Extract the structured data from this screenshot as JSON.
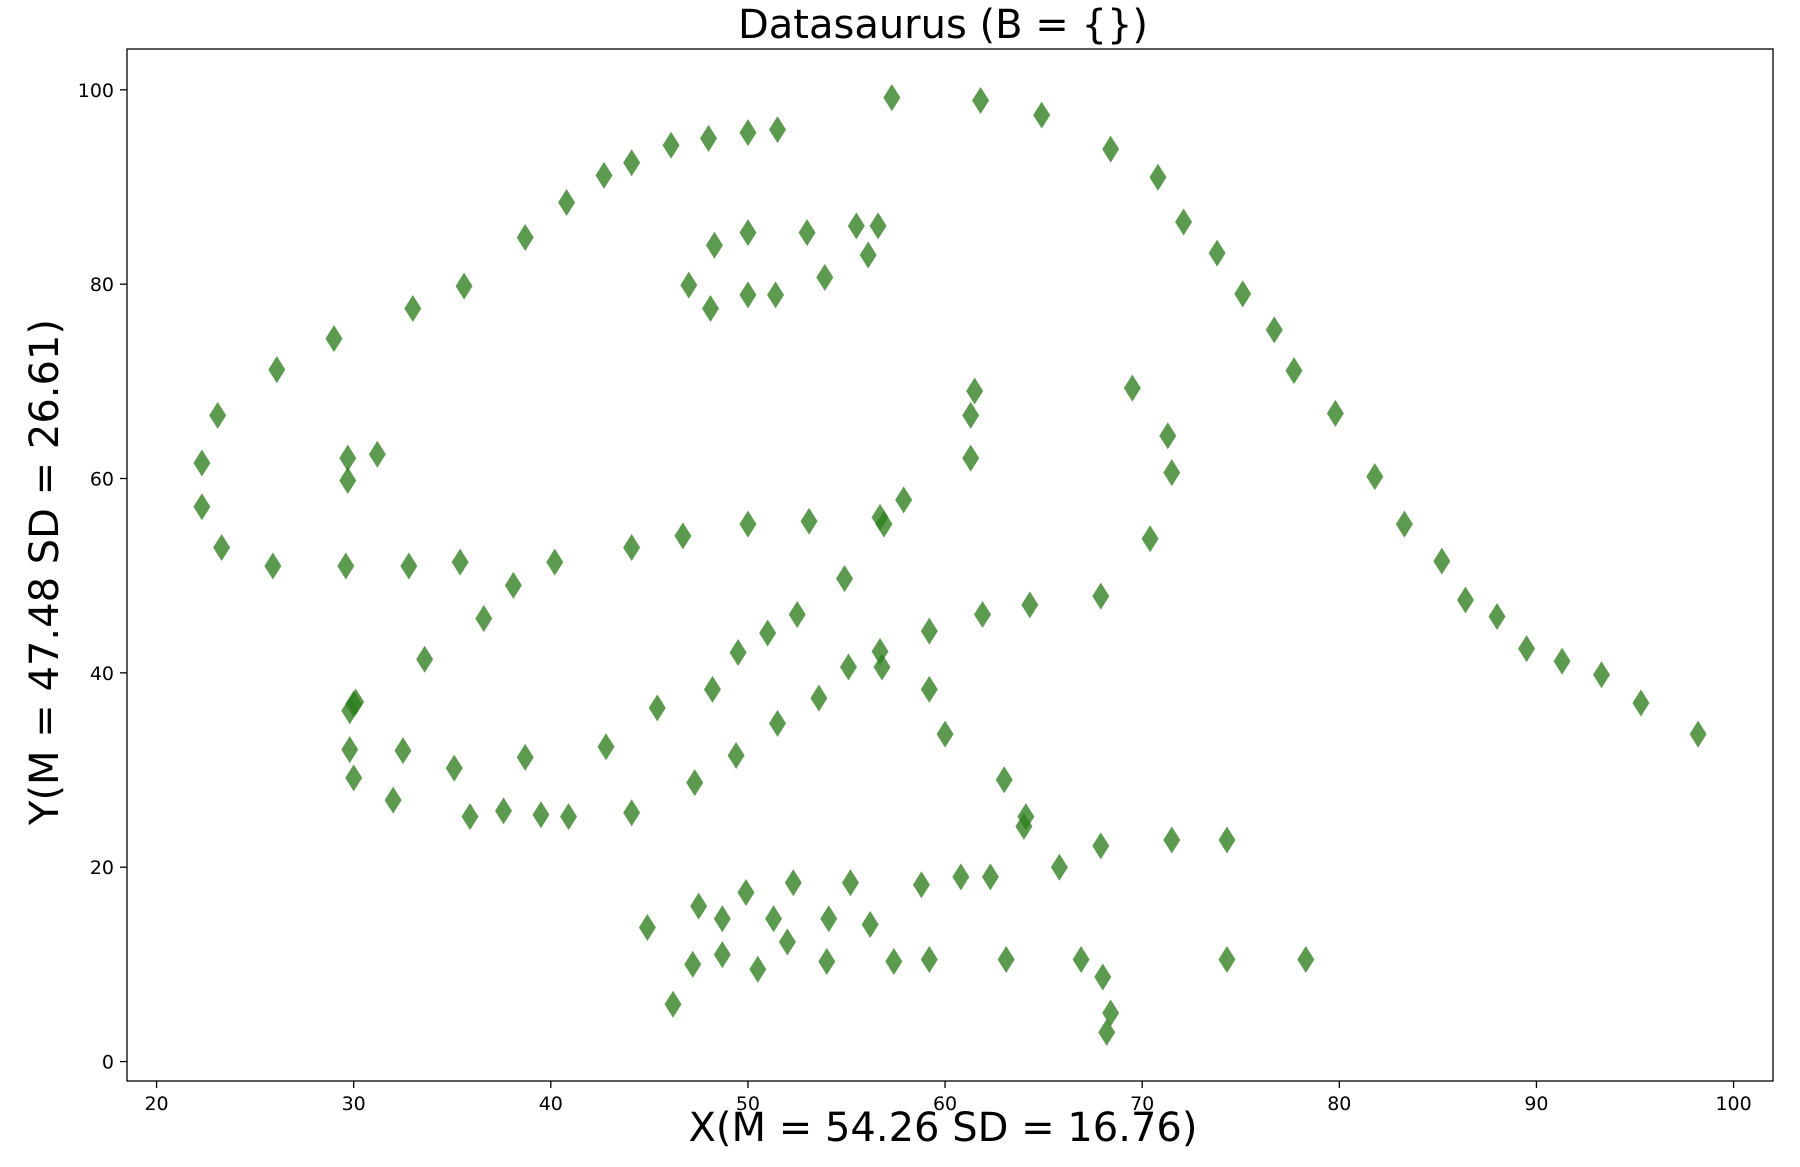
{
  "chart_data": {
    "type": "scatter",
    "title": "Datasaurus (B = {})",
    "xlabel": "X(M = 54.26 SD = 16.76)",
    "ylabel": "Y(M = 47.48 SD = 26.61)",
    "xlim": [
      18.5,
      102.0
    ],
    "ylim": [
      -2.0,
      104.2
    ],
    "xticks": [
      20,
      30,
      40,
      50,
      60,
      70,
      80,
      90,
      100
    ],
    "yticks": [
      0,
      20,
      40,
      60,
      80,
      100
    ],
    "grid": false,
    "marker": "thin_diamond",
    "color": "#2e7d1f",
    "x": [
      22.3,
      22.3,
      23.1,
      23.3,
      25.9,
      26.1,
      29.0,
      29.6,
      29.7,
      29.7,
      29.8,
      29.8,
      30.0,
      30.0,
      30.1,
      31.2,
      32.0,
      32.5,
      32.8,
      33.0,
      33.6,
      35.1,
      35.4,
      35.6,
      35.9,
      36.6,
      37.6,
      38.1,
      38.7,
      38.7,
      39.5,
      40.2,
      40.8,
      40.9,
      42.7,
      42.8,
      44.1,
      44.1,
      44.1,
      44.9,
      45.4,
      46.1,
      46.2,
      46.7,
      47.0,
      47.2,
      47.3,
      47.5,
      48.0,
      48.1,
      48.3,
      48.2,
      48.7,
      48.7,
      49.4,
      49.5,
      49.9,
      50.0,
      50.0,
      50.0,
      50.0,
      50.5,
      51.0,
      51.3,
      51.4,
      51.5,
      51.5,
      52.0,
      52.3,
      52.5,
      53.0,
      53.1,
      53.6,
      53.9,
      54.0,
      54.1,
      54.9,
      55.1,
      55.2,
      55.5,
      56.1,
      56.2,
      56.6,
      56.7,
      56.7,
      56.8,
      56.9,
      57.4,
      57.3,
      57.9,
      58.8,
      59.2,
      59.2,
      59.2,
      60.0,
      60.8,
      61.3,
      61.3,
      61.5,
      61.8,
      61.9,
      62.3,
      63.0,
      63.1,
      64.1,
      64.0,
      64.3,
      64.9,
      65.8,
      66.9,
      67.9,
      67.9,
      68.0,
      68.2,
      68.4,
      68.4,
      69.5,
      70.4,
      70.8,
      71.3,
      71.5,
      71.5,
      72.1,
      73.8,
      74.3,
      74.3,
      75.1,
      76.7,
      77.7,
      78.3,
      79.8,
      81.8,
      83.3,
      85.2,
      86.4,
      88.0,
      89.5,
      91.3,
      93.3,
      95.3,
      98.2
    ],
    "y": [
      61.6,
      57.1,
      66.5,
      52.9,
      51.0,
      71.2,
      74.4,
      51.0,
      62.1,
      59.8,
      36.1,
      32.1,
      29.2,
      36.8,
      37.0,
      62.5,
      26.9,
      32.0,
      51.0,
      77.5,
      41.4,
      30.2,
      51.4,
      79.8,
      25.2,
      45.6,
      25.8,
      49.0,
      84.8,
      31.3,
      25.4,
      51.4,
      88.4,
      25.2,
      91.2,
      32.4,
      92.5,
      52.9,
      25.6,
      13.8,
      36.4,
      94.3,
      5.9,
      54.1,
      79.9,
      10.0,
      28.7,
      16.0,
      95.0,
      77.5,
      84.0,
      38.3,
      14.7,
      11.0,
      31.5,
      42.1,
      17.4,
      95.6,
      85.3,
      78.9,
      55.3,
      9.5,
      44.1,
      14.7,
      78.9,
      95.9,
      34.8,
      12.3,
      18.4,
      46.0,
      85.3,
      55.6,
      37.4,
      80.7,
      10.3,
      14.7,
      49.7,
      40.6,
      18.4,
      86.0,
      83.0,
      14.1,
      86.0,
      56.0,
      42.2,
      40.6,
      55.3,
      10.3,
      99.2,
      57.8,
      18.2,
      44.3,
      38.3,
      10.5,
      33.7,
      19.0,
      62.1,
      66.5,
      69.0,
      98.9,
      46.0,
      19.0,
      29.0,
      10.5,
      25.2,
      24.2,
      47.0,
      97.4,
      20.0,
      10.5,
      47.9,
      22.2,
      8.7,
      3.0,
      5.0,
      93.9,
      69.3,
      53.8,
      91.0,
      64.4,
      60.6,
      22.8,
      86.4,
      83.2,
      22.8,
      10.5,
      79.0,
      75.3,
      71.1,
      10.5,
      66.7,
      60.2,
      55.3,
      51.5,
      47.5,
      45.8,
      42.5,
      41.2,
      39.8,
      36.9,
      33.7
    ]
  }
}
